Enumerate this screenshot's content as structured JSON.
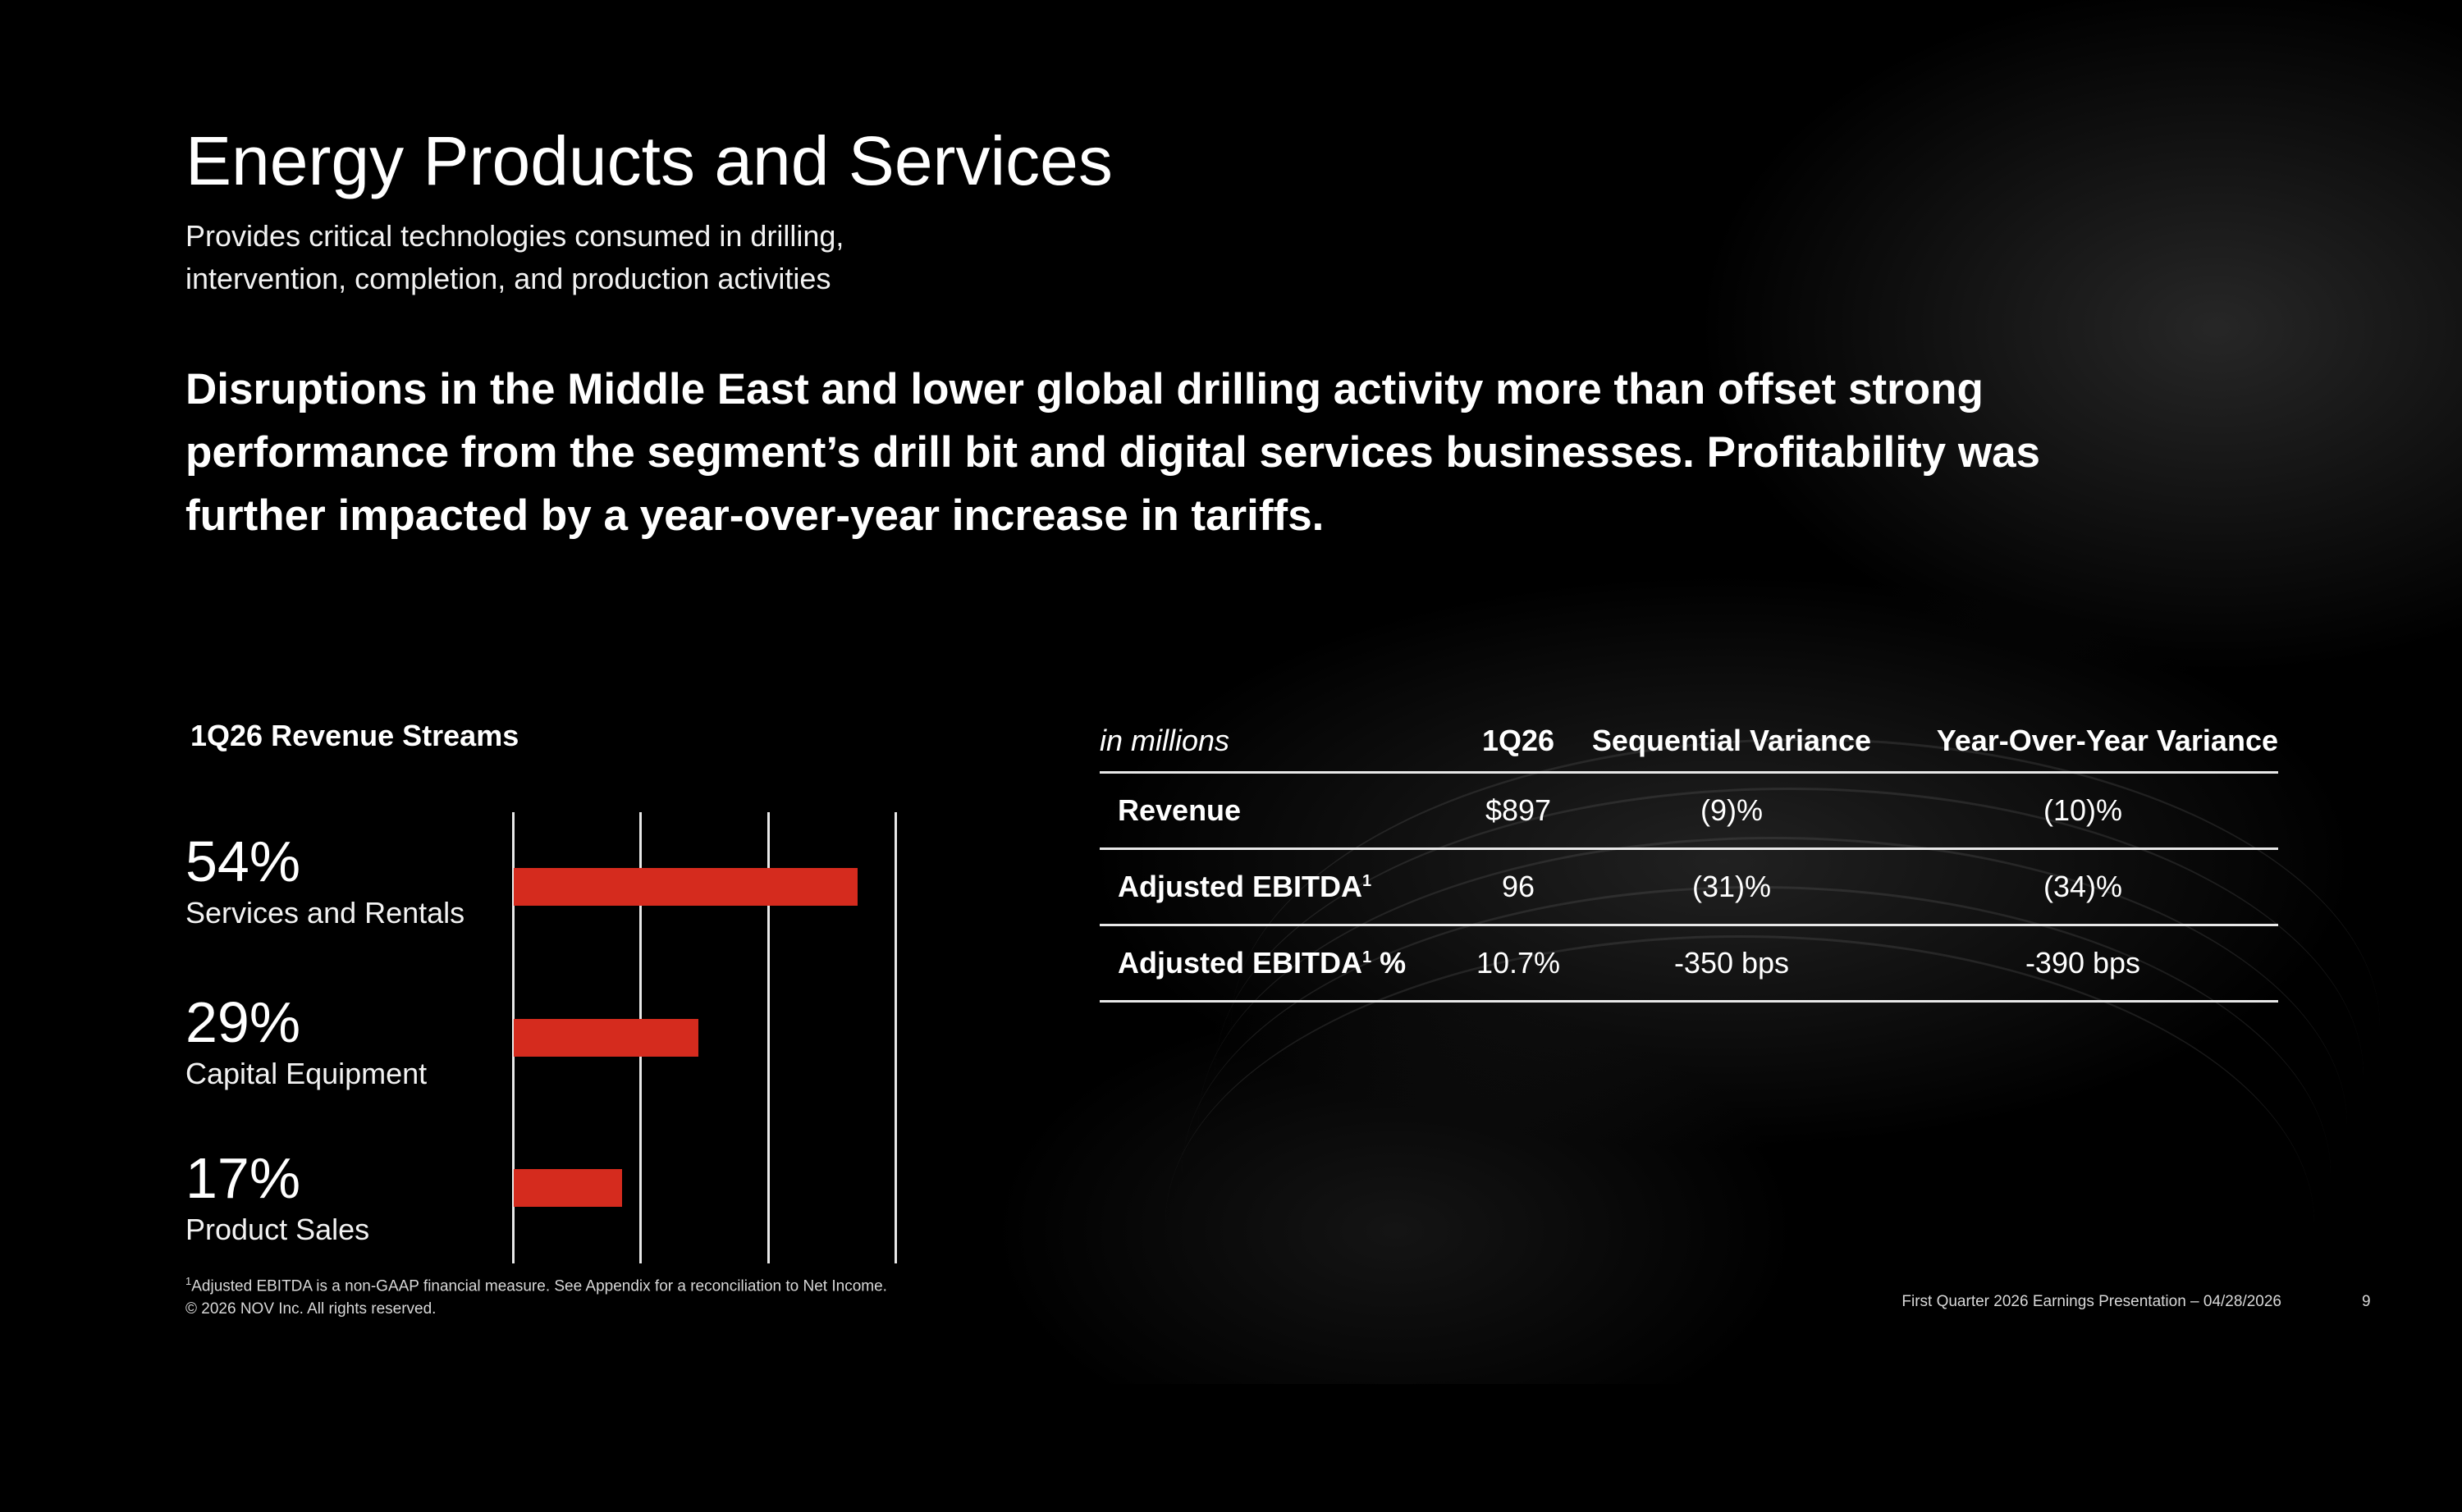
{
  "slide": {
    "title": "Energy Products and Services",
    "subtitle_line1": "Provides critical technologies consumed in drilling,",
    "subtitle_line2": "intervention, completion, and production activities",
    "headline": "Disruptions in the Middle East and lower global drilling activity more than offset strong performance from the segment’s drill bit and digital services businesses. Profitability was further impacted by a year-over-year increase in tariffs."
  },
  "revenue_streams": {
    "title": "1Q26 Revenue Streams",
    "items": [
      {
        "pct": "54%",
        "label": "Services and Rentals",
        "value": 54
      },
      {
        "pct": "29%",
        "label": "Capital Equipment",
        "value": 29
      },
      {
        "pct": "17%",
        "label": "Product Sales",
        "value": 17
      }
    ]
  },
  "chart_data": {
    "type": "bar",
    "categories": [
      "Services and Rentals",
      "Capital Equipment",
      "Product Sales"
    ],
    "values": [
      54,
      29,
      17
    ],
    "title": "1Q26 Revenue Streams",
    "orientation": "horizontal",
    "xlim": [
      0,
      60
    ],
    "grid": true,
    "bar_color": "#d52b1e"
  },
  "financials": {
    "header": {
      "label": "in millions",
      "col1": "1Q26",
      "col2": "Sequential Variance",
      "col3": "Year-Over-Year Variance"
    },
    "rows": [
      {
        "label": "Revenue",
        "sup": "",
        "suffix": "",
        "q": "$897",
        "seq": "(9)%",
        "yoy": "(10)%"
      },
      {
        "label": "Adjusted EBITDA",
        "sup": "1",
        "suffix": "",
        "q": "96",
        "seq": "(31)%",
        "yoy": "(34)%"
      },
      {
        "label": "Adjusted EBITDA",
        "sup": "1",
        "suffix": " %",
        "q": "10.7%",
        "seq": "-350 bps",
        "yoy": "-390 bps"
      }
    ]
  },
  "footer": {
    "footnote_sup": "1",
    "footnote": "Adjusted EBITDA is a non-GAAP financial measure. See Appendix for a reconciliation to Net Income.",
    "copyright": "© 2026 NOV Inc. All rights reserved.",
    "presentation": "First Quarter 2026 Earnings Presentation – 04/28/2026",
    "page": "9"
  },
  "colors": {
    "accent": "#d52b1e",
    "background": "#000000",
    "text": "#ffffff"
  }
}
